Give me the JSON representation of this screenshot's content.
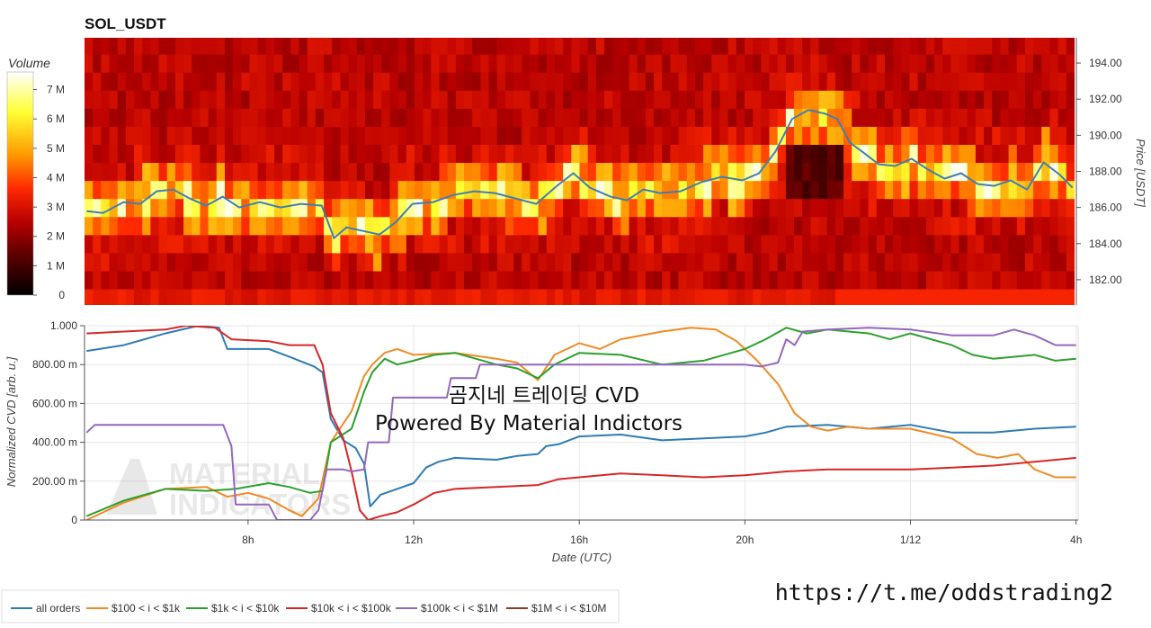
{
  "chart_data": [
    {
      "type": "heatmap",
      "title": "SOL_USDT",
      "colorbar": {
        "title": "Volume",
        "ticks": [
          "0",
          "1 M",
          "2 M",
          "3 M",
          "4 M",
          "5 M",
          "6 M",
          "7 M"
        ],
        "tick_values": [
          0,
          1,
          2,
          3,
          4,
          5,
          6,
          7
        ],
        "max": 7.6,
        "colormap": [
          "#000000",
          "#5c0000",
          "#b80000",
          "#ff2a00",
          "#ff9a00",
          "#ffff33",
          "#ffffff"
        ]
      },
      "y_axis": {
        "label": "Price [USDT]",
        "ticks": [
          "182.00",
          "184.00",
          "186.00",
          "188.00",
          "190.00",
          "192.00",
          "194.00"
        ],
        "tick_values": [
          182,
          184,
          186,
          188,
          190,
          192,
          194
        ],
        "range": [
          180.6,
          195.4
        ]
      },
      "x_range_hours": [
        4.05,
        28.05
      ],
      "price_line": {
        "color": "#3f7fb4",
        "points": [
          [
            4.1,
            185.8
          ],
          [
            4.5,
            185.7
          ],
          [
            5.0,
            186.3
          ],
          [
            5.4,
            186.2
          ],
          [
            5.8,
            186.9
          ],
          [
            6.2,
            187.0
          ],
          [
            6.6,
            186.5
          ],
          [
            7.0,
            186.1
          ],
          [
            7.4,
            186.6
          ],
          [
            7.8,
            186.0
          ],
          [
            8.3,
            186.3
          ],
          [
            8.8,
            186.0
          ],
          [
            9.3,
            186.2
          ],
          [
            9.8,
            186.1
          ],
          [
            10.1,
            184.3
          ],
          [
            10.4,
            184.9
          ],
          [
            10.8,
            184.7
          ],
          [
            11.2,
            184.5
          ],
          [
            11.6,
            185.2
          ],
          [
            12.0,
            186.2
          ],
          [
            12.5,
            186.3
          ],
          [
            13.0,
            186.7
          ],
          [
            13.5,
            186.9
          ],
          [
            14.0,
            186.8
          ],
          [
            14.5,
            186.5
          ],
          [
            15.0,
            186.2
          ],
          [
            15.5,
            187.2
          ],
          [
            15.9,
            187.9
          ],
          [
            16.3,
            187.1
          ],
          [
            16.8,
            186.6
          ],
          [
            17.2,
            186.4
          ],
          [
            17.6,
            187.0
          ],
          [
            18.0,
            186.8
          ],
          [
            18.5,
            186.9
          ],
          [
            19.0,
            187.4
          ],
          [
            19.5,
            187.7
          ],
          [
            20.0,
            187.5
          ],
          [
            20.4,
            187.9
          ],
          [
            20.8,
            189.1
          ],
          [
            21.2,
            190.9
          ],
          [
            21.6,
            191.4
          ],
          [
            22.0,
            191.2
          ],
          [
            22.3,
            190.9
          ],
          [
            22.6,
            189.6
          ],
          [
            22.9,
            189.1
          ],
          [
            23.3,
            188.4
          ],
          [
            23.7,
            188.3
          ],
          [
            24.1,
            188.7
          ],
          [
            24.5,
            188.1
          ],
          [
            24.9,
            187.6
          ],
          [
            25.3,
            187.9
          ],
          [
            25.7,
            187.3
          ],
          [
            26.1,
            187.2
          ],
          [
            26.5,
            187.5
          ],
          [
            26.9,
            187.0
          ],
          [
            27.3,
            188.5
          ],
          [
            27.7,
            187.8
          ],
          [
            28.0,
            187.1
          ]
        ]
      }
    },
    {
      "type": "line",
      "title": "",
      "xlabel": "Date (UTC)",
      "ylabel": "Normalized CVD [arb. u.]",
      "ylim": [
        0,
        1
      ],
      "y_ticks": [
        "0",
        "200.00 m",
        "400.00 m",
        "600.00 m",
        "800.00 m",
        "1.000"
      ],
      "y_tick_values": [
        0,
        0.2,
        0.4,
        0.6,
        0.8,
        1.0
      ],
      "xlim_hours": [
        4.05,
        28.05
      ],
      "x_ticks": [
        "8h",
        "12h",
        "16h",
        "20h",
        "1/12",
        "4h"
      ],
      "x_tick_values": [
        8,
        12,
        16,
        20,
        24,
        28
      ],
      "series": [
        {
          "name": "all orders",
          "color": "#2f7bb3",
          "points": [
            [
              4.1,
              0.87
            ],
            [
              5.0,
              0.9
            ],
            [
              6.0,
              0.96
            ],
            [
              6.8,
              1.0
            ],
            [
              7.3,
              0.99
            ],
            [
              7.5,
              0.88
            ],
            [
              8.5,
              0.88
            ],
            [
              9.0,
              0.84
            ],
            [
              9.6,
              0.79
            ],
            [
              9.8,
              0.76
            ],
            [
              10.0,
              0.52
            ],
            [
              10.3,
              0.41
            ],
            [
              10.6,
              0.37
            ],
            [
              10.8,
              0.29
            ],
            [
              10.95,
              0.07
            ],
            [
              11.2,
              0.13
            ],
            [
              11.6,
              0.16
            ],
            [
              12.0,
              0.19
            ],
            [
              12.3,
              0.27
            ],
            [
              12.6,
              0.3
            ],
            [
              13.0,
              0.32
            ],
            [
              14.0,
              0.31
            ],
            [
              14.5,
              0.33
            ],
            [
              15.0,
              0.34
            ],
            [
              15.2,
              0.38
            ],
            [
              15.5,
              0.39
            ],
            [
              16.0,
              0.43
            ],
            [
              17.0,
              0.44
            ],
            [
              18.0,
              0.41
            ],
            [
              19.0,
              0.42
            ],
            [
              20.0,
              0.43
            ],
            [
              20.5,
              0.45
            ],
            [
              21.0,
              0.48
            ],
            [
              22.0,
              0.49
            ],
            [
              23.0,
              0.47
            ],
            [
              24.0,
              0.49
            ],
            [
              25.0,
              0.45
            ],
            [
              26.0,
              0.45
            ],
            [
              27.0,
              0.47
            ],
            [
              28.0,
              0.48
            ]
          ]
        },
        {
          "name": "$100 < i < $1k",
          "color": "#f08a24",
          "points": [
            [
              4.1,
              0.0
            ],
            [
              5.0,
              0.09
            ],
            [
              6.0,
              0.16
            ],
            [
              7.0,
              0.17
            ],
            [
              7.5,
              0.12
            ],
            [
              8.0,
              0.14
            ],
            [
              8.5,
              0.11
            ],
            [
              9.0,
              0.05
            ],
            [
              9.3,
              0.02
            ],
            [
              9.7,
              0.11
            ],
            [
              10.0,
              0.4
            ],
            [
              10.5,
              0.56
            ],
            [
              10.8,
              0.74
            ],
            [
              11.0,
              0.8
            ],
            [
              11.3,
              0.86
            ],
            [
              11.6,
              0.88
            ],
            [
              12.0,
              0.85
            ],
            [
              13.0,
              0.86
            ],
            [
              14.0,
              0.83
            ],
            [
              14.5,
              0.81
            ],
            [
              15.0,
              0.72
            ],
            [
              15.4,
              0.85
            ],
            [
              16.0,
              0.91
            ],
            [
              16.5,
              0.88
            ],
            [
              17.0,
              0.93
            ],
            [
              18.0,
              0.97
            ],
            [
              18.7,
              0.99
            ],
            [
              19.3,
              0.98
            ],
            [
              19.8,
              0.92
            ],
            [
              20.3,
              0.82
            ],
            [
              20.8,
              0.7
            ],
            [
              21.2,
              0.55
            ],
            [
              21.6,
              0.48
            ],
            [
              22.0,
              0.46
            ],
            [
              22.5,
              0.48
            ],
            [
              23.0,
              0.47
            ],
            [
              24.0,
              0.47
            ],
            [
              25.0,
              0.42
            ],
            [
              25.6,
              0.34
            ],
            [
              26.1,
              0.32
            ],
            [
              26.6,
              0.34
            ],
            [
              27.0,
              0.26
            ],
            [
              27.5,
              0.22
            ],
            [
              28.0,
              0.22
            ]
          ]
        },
        {
          "name": "$1k < i < $10k",
          "color": "#2ca02c",
          "points": [
            [
              4.1,
              0.02
            ],
            [
              5.0,
              0.1
            ],
            [
              6.0,
              0.16
            ],
            [
              7.0,
              0.15
            ],
            [
              7.7,
              0.16
            ],
            [
              8.5,
              0.19
            ],
            [
              9.0,
              0.17
            ],
            [
              9.5,
              0.14
            ],
            [
              9.8,
              0.15
            ],
            [
              10.0,
              0.4
            ],
            [
              10.5,
              0.47
            ],
            [
              10.8,
              0.66
            ],
            [
              11.0,
              0.76
            ],
            [
              11.3,
              0.83
            ],
            [
              11.6,
              0.8
            ],
            [
              12.0,
              0.82
            ],
            [
              12.5,
              0.85
            ],
            [
              13.0,
              0.86
            ],
            [
              14.0,
              0.8
            ],
            [
              14.5,
              0.78
            ],
            [
              15.0,
              0.73
            ],
            [
              15.4,
              0.8
            ],
            [
              16.0,
              0.86
            ],
            [
              17.0,
              0.85
            ],
            [
              18.0,
              0.8
            ],
            [
              19.0,
              0.82
            ],
            [
              20.0,
              0.88
            ],
            [
              20.5,
              0.93
            ],
            [
              21.0,
              0.99
            ],
            [
              21.5,
              0.96
            ],
            [
              22.0,
              0.98
            ],
            [
              23.0,
              0.96
            ],
            [
              23.5,
              0.93
            ],
            [
              24.0,
              0.96
            ],
            [
              24.5,
              0.93
            ],
            [
              25.0,
              0.9
            ],
            [
              25.5,
              0.85
            ],
            [
              26.0,
              0.83
            ],
            [
              27.0,
              0.85
            ],
            [
              27.5,
              0.82
            ],
            [
              28.0,
              0.83
            ]
          ]
        },
        {
          "name": "$10k < i < $100k",
          "color": "#d62728",
          "points": [
            [
              4.1,
              0.96
            ],
            [
              5.0,
              0.97
            ],
            [
              6.0,
              0.98
            ],
            [
              6.5,
              1.0
            ],
            [
              7.2,
              0.99
            ],
            [
              7.6,
              0.93
            ],
            [
              8.5,
              0.92
            ],
            [
              9.0,
              0.9
            ],
            [
              9.6,
              0.9
            ],
            [
              9.8,
              0.8
            ],
            [
              10.0,
              0.55
            ],
            [
              10.3,
              0.42
            ],
            [
              10.5,
              0.25
            ],
            [
              10.7,
              0.05
            ],
            [
              10.9,
              0.0
            ],
            [
              11.2,
              0.02
            ],
            [
              11.6,
              0.04
            ],
            [
              12.0,
              0.08
            ],
            [
              12.5,
              0.14
            ],
            [
              13.0,
              0.16
            ],
            [
              14.0,
              0.17
            ],
            [
              15.0,
              0.18
            ],
            [
              15.5,
              0.21
            ],
            [
              16.0,
              0.22
            ],
            [
              17.0,
              0.24
            ],
            [
              18.0,
              0.23
            ],
            [
              19.0,
              0.22
            ],
            [
              20.0,
              0.23
            ],
            [
              21.0,
              0.25
            ],
            [
              22.0,
              0.26
            ],
            [
              23.0,
              0.26
            ],
            [
              24.0,
              0.26
            ],
            [
              25.0,
              0.27
            ],
            [
              26.0,
              0.28
            ],
            [
              27.0,
              0.3
            ],
            [
              28.0,
              0.32
            ]
          ]
        },
        {
          "name": "$100k < i < $1M",
          "color": "#9467bd",
          "points": [
            [
              4.1,
              0.45
            ],
            [
              4.3,
              0.49
            ],
            [
              6.0,
              0.49
            ],
            [
              7.4,
              0.49
            ],
            [
              7.6,
              0.38
            ],
            [
              7.7,
              0.08
            ],
            [
              8.5,
              0.08
            ],
            [
              8.7,
              0.0
            ],
            [
              9.0,
              0.0
            ],
            [
              9.5,
              0.0
            ],
            [
              9.7,
              0.05
            ],
            [
              9.9,
              0.26
            ],
            [
              10.3,
              0.26
            ],
            [
              10.5,
              0.25
            ],
            [
              10.8,
              0.26
            ],
            [
              10.9,
              0.4
            ],
            [
              11.4,
              0.4
            ],
            [
              11.5,
              0.63
            ],
            [
              12.0,
              0.63
            ],
            [
              12.8,
              0.63
            ],
            [
              12.9,
              0.73
            ],
            [
              13.5,
              0.73
            ],
            [
              13.6,
              0.8
            ],
            [
              15.0,
              0.8
            ],
            [
              20.0,
              0.8
            ],
            [
              20.4,
              0.79
            ],
            [
              20.6,
              0.8
            ],
            [
              20.8,
              0.81
            ],
            [
              21.0,
              0.93
            ],
            [
              21.2,
              0.9
            ],
            [
              21.4,
              0.97
            ],
            [
              22.0,
              0.98
            ],
            [
              23.0,
              0.99
            ],
            [
              24.0,
              0.98
            ],
            [
              25.0,
              0.95
            ],
            [
              26.0,
              0.95
            ],
            [
              26.5,
              0.98
            ],
            [
              27.0,
              0.95
            ],
            [
              27.5,
              0.9
            ],
            [
              28.0,
              0.9
            ]
          ]
        },
        {
          "name": "$1M < i < $10M",
          "color": "#8c3a2a",
          "points": []
        }
      ]
    }
  ],
  "overlay": {
    "title_line1": "곰지네 트레이딩 CVD",
    "title_line2": "Powered By Material Indictors",
    "watermark_line1": "MATERIAL",
    "watermark_line2": "INDICATORS",
    "url": "https://t.me/oddstrading2"
  }
}
